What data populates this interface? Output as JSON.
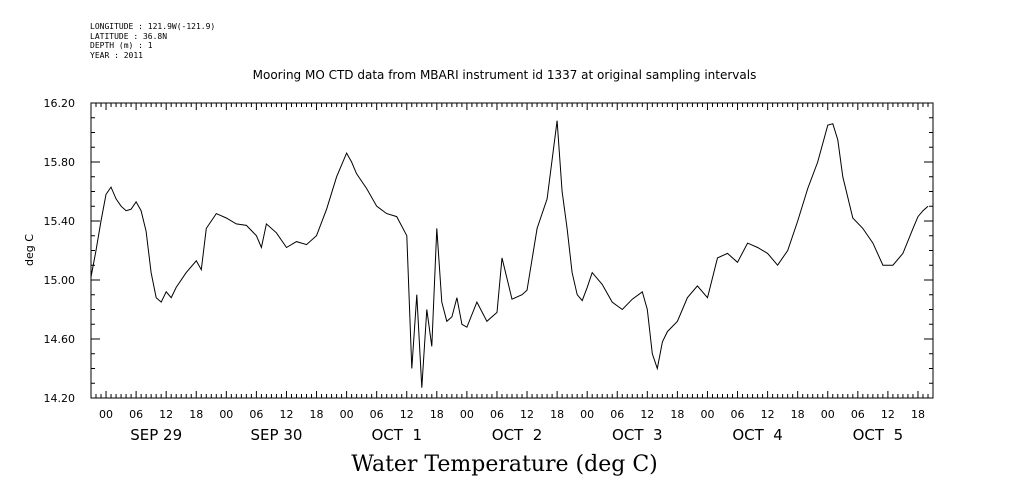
{
  "header": {
    "longitude": "LONGITUDE : 121.9W(-121.9)",
    "latitude": "LATITUDE : 36.8N",
    "depth": "DEPTH (m) : 1",
    "year": "YEAR : 2011"
  },
  "chart_data": {
    "type": "line",
    "title": "Mooring MO CTD data from MBARI instrument id 1337 at original sampling intervals",
    "xlabel": "Water Temperature (deg C)",
    "ylabel": "deg C",
    "ylim": [
      14.2,
      16.2
    ],
    "yticks": [
      14.2,
      14.6,
      15.0,
      15.4,
      15.8,
      16.2
    ],
    "ytick_labels": [
      "14.20",
      "14.60",
      "15.00",
      "15.40",
      "15.80",
      "16.20"
    ],
    "xlim": [
      "Sep 28 21:00",
      "Oct 5 21:00"
    ],
    "hour_tick_labels": [
      "00",
      "06",
      "12",
      "18",
      "00",
      "06",
      "12",
      "18",
      "00",
      "06",
      "12",
      "18",
      "00",
      "06",
      "12",
      "18",
      "00",
      "06",
      "12",
      "18",
      "00",
      "06",
      "12",
      "18",
      "00",
      "06",
      "12",
      "18"
    ],
    "day_labels": [
      "SEP 29",
      "SEP 30",
      "OCT  1",
      "OCT  2",
      "OCT  3",
      "OCT  4",
      "OCT  5"
    ],
    "series": [
      {
        "x": [
          "Sep 28 21:00",
          "Sep 28 22:00",
          "Sep 28 23:00",
          "Sep 29 00:00",
          "Sep 29 01:00",
          "Sep 29 02:00",
          "Sep 29 03:00",
          "Sep 29 04:00",
          "Sep 29 05:00",
          "Sep 29 06:00",
          "Sep 29 07:00",
          "Sep 29 08:00",
          "Sep 29 09:00",
          "Sep 29 10:00",
          "Sep 29 11:00",
          "Sep 29 12:00",
          "Sep 29 13:00",
          "Sep 29 14:00",
          "Sep 29 16:00",
          "Sep 29 18:00",
          "Sep 29 19:00",
          "Sep 29 20:00",
          "Sep 29 22:00",
          "Sep 30 00:00",
          "Sep 30 02:00",
          "Sep 30 04:00",
          "Sep 30 06:00",
          "Sep 30 07:00",
          "Sep 30 08:00",
          "Sep 30 10:00",
          "Sep 30 12:00",
          "Sep 30 14:00",
          "Sep 30 16:00",
          "Sep 30 18:00",
          "Sep 30 20:00",
          "Sep 30 22:00",
          "Sep 30 23:00",
          "Oct 1 00:00",
          "Oct 1 01:00",
          "Oct 1 02:00",
          "Oct 1 04:00",
          "Oct 1 06:00",
          "Oct 1 08:00",
          "Oct 1 10:00",
          "Oct 1 12:00",
          "Oct 1 13:00",
          "Oct 1 14:00",
          "Oct 1 15:00",
          "Oct 1 16:00",
          "Oct 1 17:00",
          "Oct 1 18:00",
          "Oct 1 19:00",
          "Oct 1 20:00",
          "Oct 1 21:00",
          "Oct 1 22:00",
          "Oct 1 23:00",
          "Oct 2 00:00",
          "Oct 2 02:00",
          "Oct 2 04:00",
          "Oct 2 06:00",
          "Oct 2 07:00",
          "Oct 2 09:00",
          "Oct 2 11:00",
          "Oct 2 12:00",
          "Oct 2 14:00",
          "Oct 2 16:00",
          "Oct 2 18:00",
          "Oct 2 19:00",
          "Oct 2 20:00",
          "Oct 2 21:00",
          "Oct 2 22:00",
          "Oct 2 23:00",
          "Oct 3 00:00",
          "Oct 3 01:00",
          "Oct 3 03:00",
          "Oct 3 05:00",
          "Oct 3 07:00",
          "Oct 3 09:00",
          "Oct 3 11:00",
          "Oct 3 12:00",
          "Oct 3 13:00",
          "Oct 3 14:00",
          "Oct 3 15:00",
          "Oct 3 16:00",
          "Oct 3 18:00",
          "Oct 3 20:00",
          "Oct 3 22:00",
          "Oct 4 00:00",
          "Oct 4 02:00",
          "Oct 4 04:00",
          "Oct 4 06:00",
          "Oct 4 08:00",
          "Oct 4 10:00",
          "Oct 4 12:00",
          "Oct 4 14:00",
          "Oct 4 16:00",
          "Oct 4 18:00",
          "Oct 4 20:00",
          "Oct 4 22:00",
          "Oct 5 00:00",
          "Oct 5 01:00",
          "Oct 5 02:00",
          "Oct 5 03:00",
          "Oct 5 05:00",
          "Oct 5 07:00",
          "Oct 5 09:00",
          "Oct 5 11:00",
          "Oct 5 13:00",
          "Oct 5 15:00",
          "Oct 5 17:00",
          "Oct 5 18:00",
          "Oct 5 19:00",
          "Oct 5 20:00"
        ],
        "values": [
          15.02,
          15.2,
          15.4,
          15.58,
          15.63,
          15.55,
          15.5,
          15.47,
          15.48,
          15.53,
          15.47,
          15.33,
          15.05,
          14.88,
          14.85,
          14.92,
          14.88,
          14.95,
          15.05,
          15.13,
          15.07,
          15.35,
          15.45,
          15.42,
          15.38,
          15.37,
          15.3,
          15.22,
          15.38,
          15.32,
          15.22,
          15.26,
          15.24,
          15.3,
          15.48,
          15.7,
          15.78,
          15.86,
          15.8,
          15.72,
          15.62,
          15.5,
          15.45,
          15.43,
          15.3,
          14.4,
          14.9,
          14.27,
          14.8,
          14.55,
          15.35,
          14.85,
          14.72,
          14.75,
          14.88,
          14.7,
          14.68,
          14.85,
          14.72,
          14.78,
          15.15,
          14.87,
          14.9,
          14.93,
          15.35,
          15.55,
          16.08,
          15.6,
          15.35,
          15.05,
          14.9,
          14.86,
          14.95,
          15.05,
          14.97,
          14.85,
          14.8,
          14.87,
          14.92,
          14.8,
          14.5,
          14.4,
          14.58,
          14.65,
          14.72,
          14.88,
          14.96,
          14.88,
          15.15,
          15.18,
          15.12,
          15.25,
          15.22,
          15.18,
          15.1,
          15.2,
          15.4,
          15.62,
          15.8,
          16.05,
          16.06,
          15.95,
          15.7,
          15.42,
          15.35,
          15.25,
          15.1,
          15.1,
          15.18,
          15.35,
          15.43,
          15.47,
          15.5
        ]
      }
    ]
  }
}
